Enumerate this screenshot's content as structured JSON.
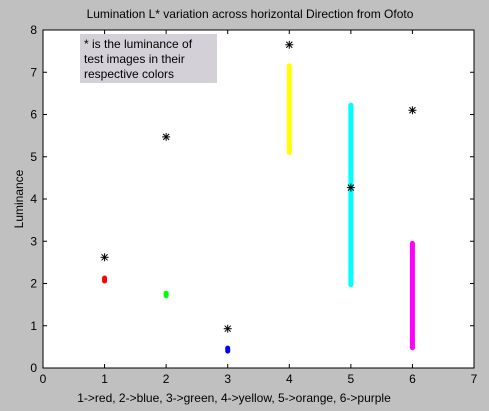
{
  "chart_data": {
    "type": "scatter",
    "title": "Lumination L* variation across horizontal Direction from Ofoto",
    "xlabel": "1->red, 2->blue, 3->green, 4->yellow, 5->orange, 6->purple",
    "ylabel": "Luminance",
    "xlim": [
      0,
      7
    ],
    "ylim": [
      0,
      8
    ],
    "xticks": [
      "0",
      "1",
      "2",
      "3",
      "4",
      "5",
      "6",
      "7"
    ],
    "yticks": [
      "0",
      "1",
      "2",
      "3",
      "4",
      "5",
      "6",
      "7",
      "8"
    ],
    "grid": false,
    "annotation": [
      "* is the luminance of",
      "test images in their",
      "respective colors"
    ],
    "series": [
      {
        "marker": "ranges",
        "ranges": [
          {
            "x": 1,
            "ymin": 2.06,
            "ymax": 2.13,
            "color": "#ff0000"
          },
          {
            "x": 2,
            "ymin": 1.71,
            "ymax": 1.77,
            "color": "#00ff00"
          },
          {
            "x": 3,
            "ymin": 0.4,
            "ymax": 0.47,
            "color": "#0000ff"
          },
          {
            "x": 4,
            "ymin": 5.1,
            "ymax": 7.15,
            "color": "#ffff00"
          },
          {
            "x": 5,
            "ymin": 1.97,
            "ymax": 6.22,
            "color": "#00ffff"
          },
          {
            "x": 6,
            "ymin": 0.48,
            "ymax": 2.95,
            "color": "#ff00ff"
          }
        ]
      },
      {
        "marker": "asterisk",
        "color": "#000000",
        "points": [
          {
            "x": 1,
            "y": 2.62
          },
          {
            "x": 2,
            "y": 5.47
          },
          {
            "x": 3,
            "y": 0.93
          },
          {
            "x": 4,
            "y": 7.65
          },
          {
            "x": 5,
            "y": 4.27
          },
          {
            "x": 6,
            "y": 6.1
          }
        ]
      }
    ]
  }
}
